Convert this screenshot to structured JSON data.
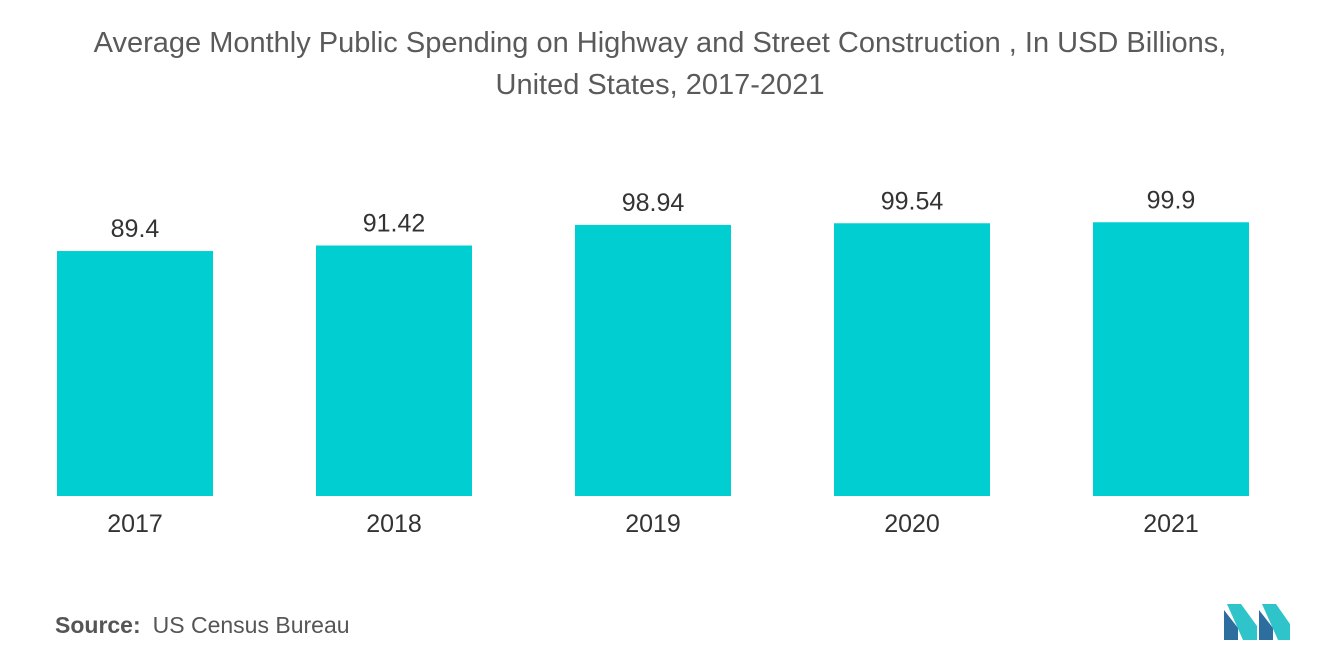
{
  "chart_data": {
    "type": "bar",
    "title_line1": "Average Monthly Public Spending on Highway and Street Construction , In USD Billions,",
    "title_line2": "United States, 2017-2021",
    "categories": [
      "2017",
      "2018",
      "2019",
      "2020",
      "2021"
    ],
    "values": [
      89.4,
      91.42,
      98.94,
      99.54,
      99.9
    ],
    "value_labels": [
      "89.4",
      "91.42",
      "98.94",
      "99.54",
      "99.9"
    ],
    "xlabel": "",
    "ylabel": "",
    "ylim": [
      0,
      100
    ],
    "grid": false,
    "legend": "none",
    "bar_color": "#00CED1"
  },
  "source": {
    "label": "Source:",
    "text": "US Census Bureau"
  },
  "logo": {
    "icon": "mordor-intelligence-logo-icon",
    "colors": [
      "#2E6E9E",
      "#2FC4C9"
    ]
  }
}
